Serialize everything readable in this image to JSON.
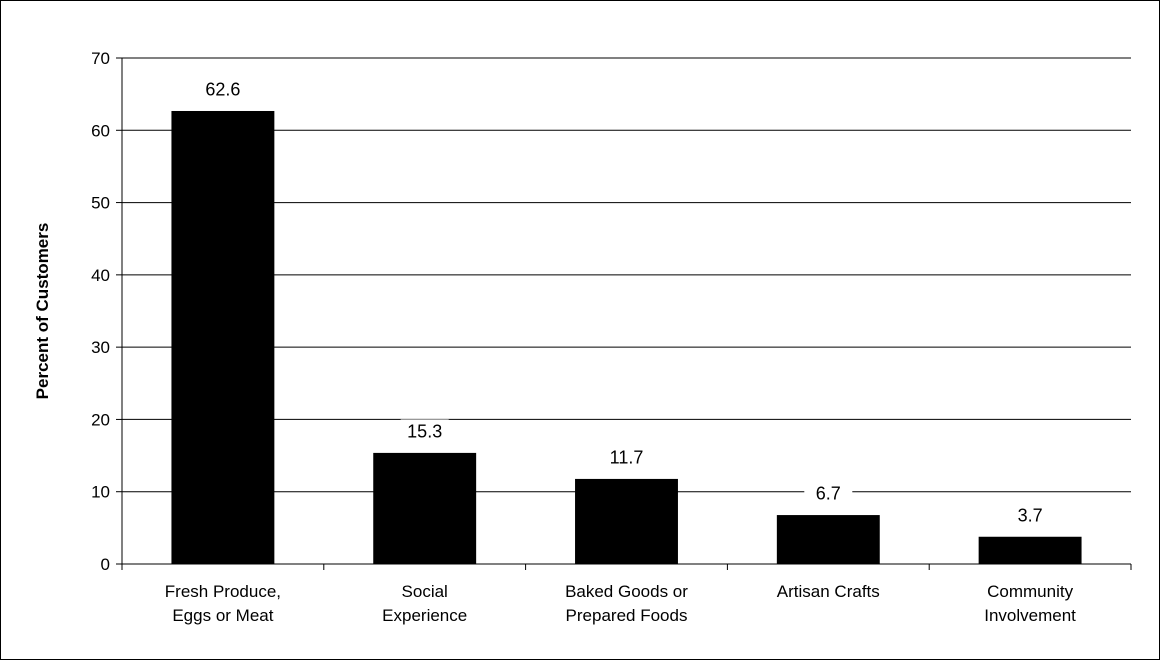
{
  "chart_data": {
    "type": "bar",
    "title": "",
    "xlabel": "",
    "ylabel": "Percent of Customers",
    "categories": [
      [
        "Fresh Produce,",
        "Eggs or Meat"
      ],
      [
        "Social",
        "Experience"
      ],
      [
        "Baked Goods or",
        "Prepared Foods"
      ],
      [
        "Artisan Crafts"
      ],
      [
        "Community",
        "Involvement"
      ]
    ],
    "values": [
      62.6,
      15.3,
      11.7,
      6.7,
      3.7
    ],
    "value_labels": [
      "62.6",
      "15.3",
      "11.7",
      "6.7",
      "3.7"
    ],
    "ylim": [
      0,
      70
    ],
    "yticks": [
      0,
      10,
      20,
      30,
      40,
      50,
      60,
      70
    ],
    "grid": true,
    "bar_color": "#000000",
    "legend": "none"
  }
}
